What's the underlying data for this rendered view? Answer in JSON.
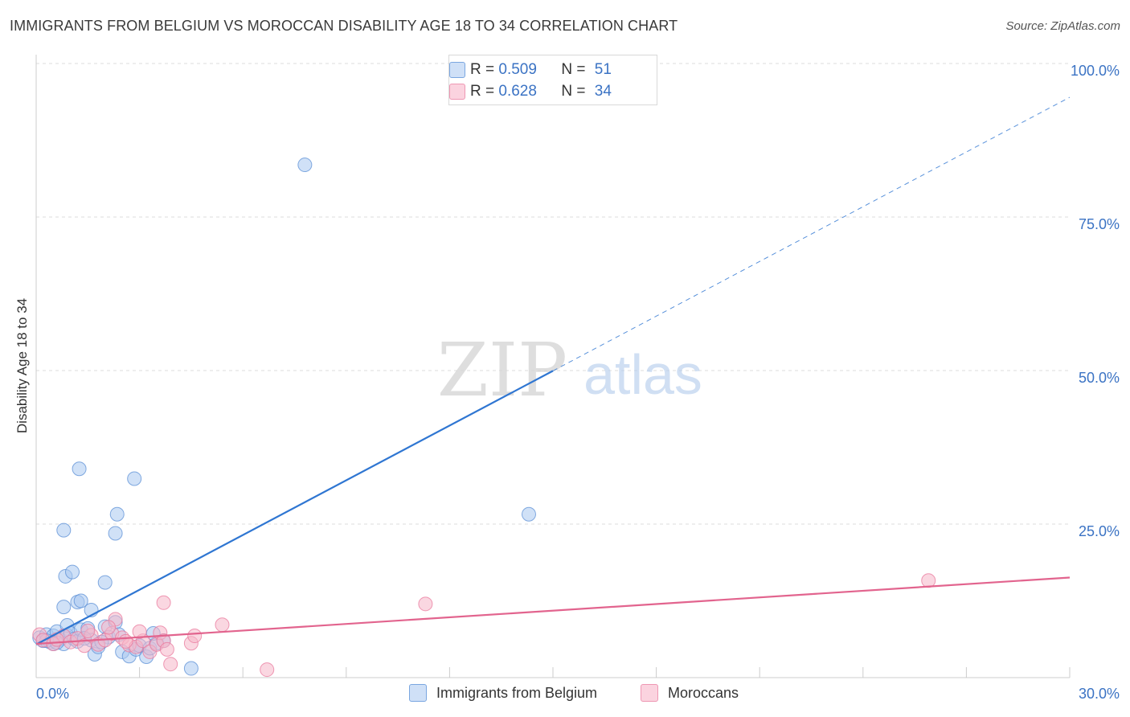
{
  "header": {
    "title": "IMMIGRANTS FROM BELGIUM VS MOROCCAN DISABILITY AGE 18 TO 34 CORRELATION CHART",
    "source": "Source: ZipAtlas.com"
  },
  "watermark": {
    "zip": "ZIP",
    "atlas": "atlas"
  },
  "legend": {
    "r_label": "R =",
    "n_label": "N =",
    "entries": [
      {
        "r": "0.509",
        "n": "51",
        "color": "#aecbf2"
      },
      {
        "r": "0.628",
        "n": "34",
        "color": "#f7b9cb"
      }
    ]
  },
  "colors": {
    "blue_fill": "#a9c8f0",
    "blue_stroke": "#5b8fd6",
    "blue_line": "#2f76d2",
    "pink_fill": "#f6b6c8",
    "pink_stroke": "#e9789c",
    "pink_line": "#e2648e",
    "tick_label": "#3b73c4",
    "grid": "#dcdcdc"
  },
  "chart_data": {
    "type": "scatter",
    "title": "IMMIGRANTS FROM BELGIUM VS MOROCCAN DISABILITY AGE 18 TO 34 CORRELATION CHART",
    "xlabel": "",
    "ylabel": "Disability Age 18 to 34",
    "xlim": [
      0,
      30
    ],
    "ylim": [
      0,
      100
    ],
    "x_tick_labels": [
      {
        "value": 0,
        "label": "0.0%"
      },
      {
        "value": 30,
        "label": "30.0%"
      }
    ],
    "y_tick_labels": [
      {
        "value": 25,
        "label": "25.0%"
      },
      {
        "value": 50,
        "label": "50.0%"
      },
      {
        "value": 75,
        "label": "75.0%"
      },
      {
        "value": 100,
        "label": "100.0%"
      }
    ],
    "series": [
      {
        "name": "Immigrants from Belgium",
        "color": "#a9c8f0",
        "points": [
          [
            0.1,
            6.5
          ],
          [
            0.2,
            6.0
          ],
          [
            0.3,
            7.0
          ],
          [
            0.4,
            5.8
          ],
          [
            0.5,
            6.8
          ],
          [
            0.6,
            7.5
          ],
          [
            0.7,
            6.2
          ],
          [
            0.8,
            5.5
          ],
          [
            0.9,
            6.9
          ],
          [
            0.9,
            8.5
          ],
          [
            1.0,
            7.2
          ],
          [
            1.1,
            6.3
          ],
          [
            1.2,
            5.9
          ],
          [
            1.3,
            7.8
          ],
          [
            1.5,
            8.0
          ],
          [
            1.6,
            6.1
          ],
          [
            1.7,
            3.8
          ],
          [
            1.8,
            5.0
          ],
          [
            2.0,
            8.3
          ],
          [
            2.1,
            6.6
          ],
          [
            2.3,
            9.0
          ],
          [
            2.5,
            4.2
          ],
          [
            2.7,
            3.5
          ],
          [
            2.9,
            4.6
          ],
          [
            3.0,
            5.2
          ],
          [
            3.2,
            3.4
          ],
          [
            3.3,
            4.8
          ],
          [
            3.5,
            5.6
          ],
          [
            3.7,
            6.0
          ],
          [
            0.8,
            11.5
          ],
          [
            0.8,
            24.0
          ],
          [
            0.85,
            16.5
          ],
          [
            1.05,
            17.2
          ],
          [
            1.2,
            12.3
          ],
          [
            1.3,
            12.5
          ],
          [
            1.6,
            11.0
          ],
          [
            2.0,
            15.5
          ],
          [
            1.25,
            34.0
          ],
          [
            2.35,
            26.6
          ],
          [
            2.3,
            23.5
          ],
          [
            2.85,
            32.4
          ],
          [
            4.5,
            1.5
          ],
          [
            7.8,
            83.5
          ],
          [
            14.3,
            26.6
          ],
          [
            0.5,
            5.5
          ],
          [
            1.4,
            6.4
          ],
          [
            2.4,
            7.0
          ],
          [
            1.9,
            5.8
          ],
          [
            3.4,
            7.2
          ],
          [
            0.3,
            6.0
          ],
          [
            0.6,
            5.7
          ]
        ]
      },
      {
        "name": "Moroccans",
        "color": "#f6b6c8",
        "points": [
          [
            0.1,
            7.0
          ],
          [
            0.2,
            6.1
          ],
          [
            0.5,
            5.5
          ],
          [
            0.8,
            6.8
          ],
          [
            1.0,
            5.8
          ],
          [
            1.2,
            6.4
          ],
          [
            1.4,
            5.2
          ],
          [
            1.6,
            6.9
          ],
          [
            1.8,
            5.4
          ],
          [
            2.0,
            6.1
          ],
          [
            2.2,
            7.2
          ],
          [
            2.5,
            6.5
          ],
          [
            2.7,
            5.3
          ],
          [
            2.9,
            5.0
          ],
          [
            3.1,
            6.0
          ],
          [
            3.3,
            4.2
          ],
          [
            3.5,
            5.4
          ],
          [
            3.6,
            7.3
          ],
          [
            3.7,
            6.0
          ],
          [
            3.8,
            4.6
          ],
          [
            2.3,
            9.5
          ],
          [
            2.1,
            8.2
          ],
          [
            3.0,
            7.5
          ],
          [
            3.9,
            2.2
          ],
          [
            4.5,
            5.6
          ],
          [
            4.6,
            6.8
          ],
          [
            5.4,
            8.6
          ],
          [
            6.7,
            1.3
          ],
          [
            11.3,
            12.0
          ],
          [
            3.7,
            12.2
          ],
          [
            25.9,
            15.8
          ],
          [
            1.5,
            7.6
          ],
          [
            0.6,
            6.2
          ],
          [
            2.6,
            5.9
          ]
        ]
      }
    ],
    "trendlines": [
      {
        "series": "Immigrants from Belgium",
        "x0": 0,
        "y0": 5.4,
        "x_solid_end": 15,
        "x1": 30,
        "y1": 94.5
      },
      {
        "series": "Moroccans",
        "x0": 0,
        "y0": 5.5,
        "x1": 30,
        "y1": 16.3
      }
    ]
  }
}
